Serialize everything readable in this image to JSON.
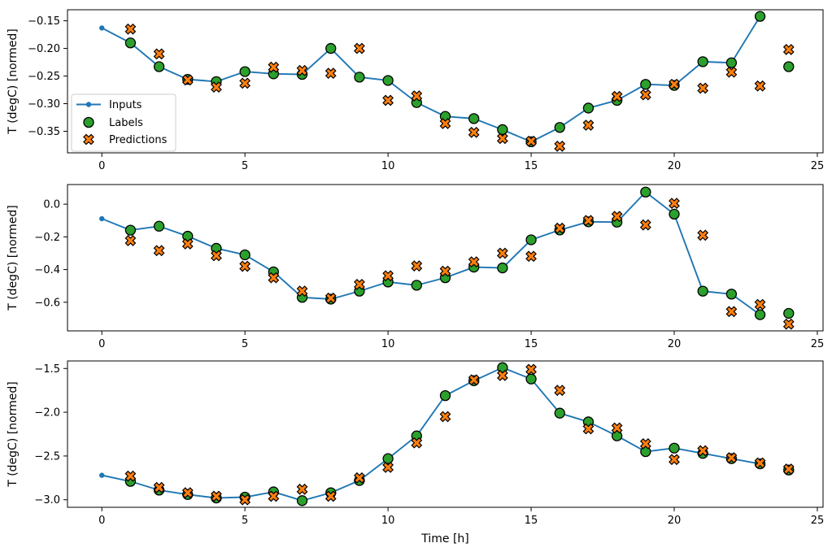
{
  "figure": {
    "background": "#ffffff",
    "xlabel": "Time [h]",
    "ylabel": "T (degC) [normed]"
  },
  "colors": {
    "inputs": "#1f77b4",
    "labels": "#2ca02c",
    "predictions": "#ff7f0e",
    "marker_edge": "#000000",
    "legend_border": "#cccccc"
  },
  "legend": {
    "visible_on_subplot": 1,
    "entries": [
      {
        "label": "Inputs",
        "marker": "line-dot",
        "color": "#1f77b4"
      },
      {
        "label": "Labels",
        "marker": "circle",
        "color": "#2ca02c"
      },
      {
        "label": "Predictions",
        "marker": "x-cross",
        "color": "#ff7f0e"
      }
    ]
  },
  "chart_data": [
    {
      "type": "line",
      "title": "",
      "xlabel": "",
      "ylabel": "T (degC) [normed]",
      "xlim": [
        -1.2,
        25.2
      ],
      "ylim": [
        -0.389,
        -0.13
      ],
      "xticks": [
        0,
        5,
        10,
        15,
        20,
        25
      ],
      "xtick_labels": [
        "0",
        "5",
        "10",
        "15",
        "20",
        "25"
      ],
      "yticks": [
        -0.15,
        -0.2,
        -0.25,
        -0.3,
        -0.35
      ],
      "ytick_labels": [
        "−0.15",
        "−0.20",
        "−0.25",
        "−0.30",
        "−0.35"
      ],
      "grid": false,
      "legend_position": "lower-left",
      "show_legend": true,
      "series": [
        {
          "name": "Inputs",
          "style": "line-dot",
          "color": "#1f77b4",
          "x": [
            0,
            1,
            2,
            3,
            4,
            5,
            6,
            7,
            8,
            9,
            10,
            11,
            12,
            13,
            14,
            15,
            16,
            17,
            18,
            19,
            20,
            21,
            22,
            23
          ],
          "values": [
            -0.163,
            -0.19,
            -0.233,
            -0.256,
            -0.26,
            -0.242,
            -0.246,
            -0.247,
            -0.2,
            -0.252,
            -0.258,
            -0.298,
            -0.323,
            -0.327,
            -0.347,
            -0.369,
            -0.343,
            -0.308,
            -0.294,
            -0.265,
            -0.267,
            -0.224,
            -0.226,
            -0.142
          ]
        },
        {
          "name": "Labels",
          "style": "circle",
          "color": "#2ca02c",
          "x": [
            1,
            2,
            3,
            4,
            5,
            6,
            7,
            8,
            9,
            10,
            11,
            12,
            13,
            14,
            15,
            16,
            17,
            18,
            19,
            20,
            21,
            22,
            23,
            24
          ],
          "values": [
            -0.19,
            -0.233,
            -0.256,
            -0.26,
            -0.242,
            -0.246,
            -0.247,
            -0.2,
            -0.252,
            -0.258,
            -0.298,
            -0.323,
            -0.327,
            -0.347,
            -0.369,
            -0.343,
            -0.308,
            -0.294,
            -0.265,
            -0.267,
            -0.224,
            -0.226,
            -0.142,
            -0.233
          ]
        },
        {
          "name": "Predictions",
          "style": "x-cross",
          "color": "#ff7f0e",
          "x": [
            1,
            2,
            3,
            4,
            5,
            6,
            7,
            8,
            9,
            10,
            11,
            12,
            13,
            14,
            15,
            16,
            17,
            18,
            19,
            20,
            21,
            22,
            23,
            24
          ],
          "values": [
            -0.165,
            -0.21,
            -0.257,
            -0.27,
            -0.263,
            -0.234,
            -0.24,
            -0.245,
            -0.2,
            -0.294,
            -0.286,
            -0.336,
            -0.352,
            -0.363,
            -0.368,
            -0.377,
            -0.339,
            -0.287,
            -0.284,
            -0.265,
            -0.272,
            -0.243,
            -0.268,
            -0.202
          ]
        }
      ]
    },
    {
      "type": "line",
      "title": "",
      "xlabel": "",
      "ylabel": "T (degC) [normed]",
      "xlim": [
        -1.2,
        25.2
      ],
      "ylim": [
        -0.775,
        0.12
      ],
      "xticks": [
        0,
        5,
        10,
        15,
        20,
        25
      ],
      "xtick_labels": [
        "0",
        "5",
        "10",
        "15",
        "20",
        "25"
      ],
      "yticks": [
        0.0,
        -0.2,
        -0.4,
        -0.6
      ],
      "ytick_labels": [
        "0.0",
        "−0.2",
        "−0.4",
        "−0.6"
      ],
      "grid": false,
      "show_legend": false,
      "series": [
        {
          "name": "Inputs",
          "style": "line-dot",
          "color": "#1f77b4",
          "x": [
            0,
            1,
            2,
            3,
            4,
            5,
            6,
            7,
            8,
            9,
            10,
            11,
            12,
            13,
            14,
            15,
            16,
            17,
            18,
            19,
            20,
            21,
            22,
            23
          ],
          "values": [
            -0.089,
            -0.159,
            -0.135,
            -0.196,
            -0.27,
            -0.31,
            -0.414,
            -0.57,
            -0.581,
            -0.532,
            -0.476,
            -0.496,
            -0.45,
            -0.385,
            -0.39,
            -0.218,
            -0.158,
            -0.108,
            -0.11,
            0.074,
            -0.061,
            -0.532,
            -0.55,
            -0.676
          ]
        },
        {
          "name": "Labels",
          "style": "circle",
          "color": "#2ca02c",
          "x": [
            1,
            2,
            3,
            4,
            5,
            6,
            7,
            8,
            9,
            10,
            11,
            12,
            13,
            14,
            15,
            16,
            17,
            18,
            19,
            20,
            21,
            22,
            23,
            24
          ],
          "values": [
            -0.159,
            -0.135,
            -0.196,
            -0.27,
            -0.31,
            -0.414,
            -0.57,
            -0.581,
            -0.532,
            -0.476,
            -0.496,
            -0.45,
            -0.385,
            -0.39,
            -0.218,
            -0.158,
            -0.108,
            -0.11,
            0.074,
            -0.061,
            -0.532,
            -0.55,
            -0.676,
            -0.668
          ]
        },
        {
          "name": "Predictions",
          "style": "x-cross",
          "color": "#ff7f0e",
          "x": [
            1,
            2,
            3,
            4,
            5,
            6,
            7,
            8,
            9,
            10,
            11,
            12,
            13,
            14,
            15,
            16,
            17,
            18,
            19,
            20,
            21,
            22,
            23,
            24
          ],
          "values": [
            -0.223,
            -0.284,
            -0.243,
            -0.315,
            -0.38,
            -0.45,
            -0.532,
            -0.575,
            -0.491,
            -0.438,
            -0.378,
            -0.41,
            -0.353,
            -0.3,
            -0.319,
            -0.147,
            -0.1,
            -0.075,
            -0.127,
            0.005,
            -0.19,
            -0.657,
            -0.614,
            -0.734
          ]
        }
      ]
    },
    {
      "type": "line",
      "title": "",
      "xlabel": "Time [h]",
      "ylabel": "T (degC) [normed]",
      "xlim": [
        -1.2,
        25.2
      ],
      "ylim": [
        -3.086,
        -1.414
      ],
      "xticks": [
        0,
        5,
        10,
        15,
        20,
        25
      ],
      "xtick_labels": [
        "0",
        "5",
        "10",
        "15",
        "20",
        "25"
      ],
      "yticks": [
        -1.5,
        -2.0,
        -2.5,
        -3.0
      ],
      "ytick_labels": [
        "−1.5",
        "−2.0",
        "−2.5",
        "−3.0"
      ],
      "grid": false,
      "show_legend": false,
      "series": [
        {
          "name": "Inputs",
          "style": "line-dot",
          "color": "#1f77b4",
          "x": [
            0,
            1,
            2,
            3,
            4,
            5,
            6,
            7,
            8,
            9,
            10,
            11,
            12,
            13,
            14,
            15,
            16,
            17,
            18,
            19,
            20,
            21,
            22,
            23
          ],
          "values": [
            -2.72,
            -2.79,
            -2.89,
            -2.94,
            -2.98,
            -2.97,
            -2.91,
            -3.01,
            -2.92,
            -2.78,
            -2.53,
            -2.27,
            -1.81,
            -1.64,
            -1.49,
            -1.62,
            -2.01,
            -2.11,
            -2.27,
            -2.45,
            -2.41,
            -2.47,
            -2.53,
            -2.59
          ]
        },
        {
          "name": "Labels",
          "style": "circle",
          "color": "#2ca02c",
          "x": [
            1,
            2,
            3,
            4,
            5,
            6,
            7,
            8,
            9,
            10,
            11,
            12,
            13,
            14,
            15,
            16,
            17,
            18,
            19,
            20,
            21,
            22,
            23,
            24
          ],
          "values": [
            -2.79,
            -2.89,
            -2.94,
            -2.98,
            -2.97,
            -2.91,
            -3.01,
            -2.92,
            -2.78,
            -2.53,
            -2.27,
            -1.81,
            -1.64,
            -1.49,
            -1.62,
            -2.01,
            -2.11,
            -2.27,
            -2.45,
            -2.41,
            -2.47,
            -2.53,
            -2.59,
            -2.66
          ]
        },
        {
          "name": "Predictions",
          "style": "x-cross",
          "color": "#ff7f0e",
          "x": [
            1,
            2,
            3,
            4,
            5,
            6,
            7,
            8,
            9,
            10,
            11,
            12,
            13,
            14,
            15,
            16,
            17,
            18,
            19,
            20,
            21,
            22,
            23,
            24
          ],
          "values": [
            -2.73,
            -2.86,
            -2.92,
            -2.96,
            -3.0,
            -2.96,
            -2.88,
            -2.96,
            -2.75,
            -2.63,
            -2.35,
            -2.05,
            -1.63,
            -1.58,
            -1.51,
            -1.75,
            -2.19,
            -2.18,
            -2.36,
            -2.54,
            -2.44,
            -2.52,
            -2.58,
            -2.65
          ]
        }
      ]
    }
  ]
}
